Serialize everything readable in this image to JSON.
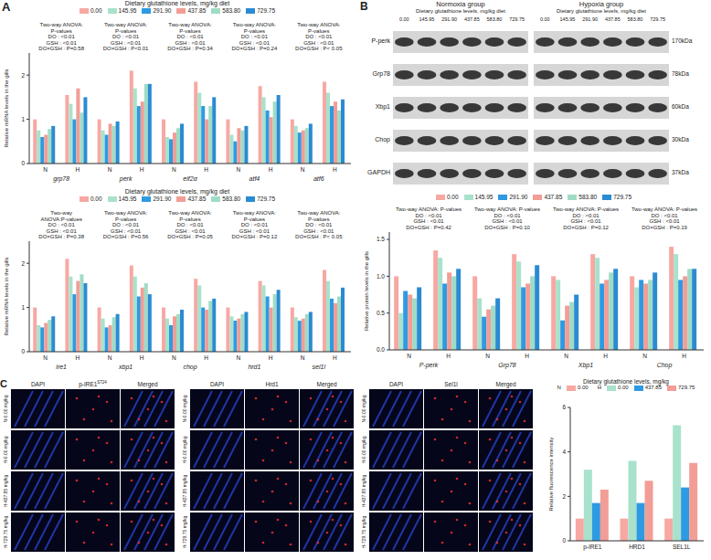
{
  "panel_labels": [
    "A",
    "B",
    "C"
  ],
  "chart_data": [
    {
      "type": "bar",
      "title": "Dietary glutathione levels, mg/kg diet",
      "y_label": "Relative mRNA levels in the gills",
      "legend": "top",
      "groups": [
        "grp78",
        "perk",
        "eif2α",
        "atf4",
        "atf6"
      ],
      "categories": [
        "N",
        "H",
        "N",
        "H",
        "N",
        "H",
        "N",
        "H",
        "N",
        "H"
      ],
      "ylim": [
        0,
        2.5
      ],
      "yticks": [
        0,
        1,
        2
      ],
      "annotations": [
        [
          "Two-way ANOVA: P-values",
          "DO : <0.01",
          "GSH : <0.01",
          "DO×GSH : P=0.58"
        ],
        [
          "Two-way ANOVA: P-values",
          "DO : <0.01",
          "GSH : <0.01",
          "DO×GSH : P<0.01"
        ],
        [
          "Two-way ANOVA: P-values",
          "DO : <0.01",
          "GSH : <0.01",
          "DO×GSH : P=0.34"
        ],
        [
          "Two-way ANOVA: P-values",
          "DO : <0.01",
          "GSH : <0.01",
          "DO×GSH : P=0.24"
        ],
        [
          "Two-way ANOVA: P-values",
          "DO : <0.01",
          "GSH : <0.01",
          "DO×GSH : P< 0.05"
        ]
      ],
      "series": [
        {
          "name": "0.00",
          "color": "#f7a8a3",
          "values": [
            1.0,
            1.55,
            1.0,
            2.1,
            1.0,
            1.85,
            1.0,
            1.75,
            1.0,
            1.85
          ]
        },
        {
          "name": "145.95",
          "color": "#a8e2cc",
          "values": [
            0.75,
            1.35,
            0.75,
            1.7,
            0.6,
            1.6,
            0.65,
            1.5,
            0.85,
            1.6
          ]
        },
        {
          "name": "291.90",
          "color": "#2e9ae2",
          "values": [
            0.6,
            1.0,
            0.65,
            1.3,
            0.55,
            1.3,
            0.5,
            1.2,
            0.7,
            1.3
          ]
        },
        {
          "name": "437.85",
          "color": "#f29d96",
          "values": [
            0.65,
            1.7,
            0.9,
            1.4,
            0.7,
            1.0,
            0.8,
            1.05,
            0.75,
            1.4
          ]
        },
        {
          "name": "583.80",
          "color": "#9fdcc5",
          "values": [
            0.78,
            1.15,
            0.85,
            1.8,
            0.8,
            1.3,
            0.75,
            1.4,
            0.8,
            1.2
          ]
        },
        {
          "name": "729.75",
          "color": "#2b8bd2",
          "values": [
            0.85,
            1.5,
            0.95,
            1.8,
            0.9,
            1.5,
            0.85,
            1.55,
            0.9,
            1.45
          ]
        }
      ]
    },
    {
      "type": "bar",
      "title": "Dietary glutathione levels, mg/kg diet",
      "y_label": "Relative mRNA levels in the gills",
      "legend": "top",
      "groups": [
        "ire1",
        "xbp1",
        "chop",
        "hrd1",
        "sel1l"
      ],
      "categories": [
        "N",
        "H",
        "N",
        "H",
        "N",
        "H",
        "N",
        "H",
        "N",
        "H"
      ],
      "ylim": [
        0,
        2.5
      ],
      "yticks": [
        0,
        1,
        2
      ],
      "annotations": [
        [
          "Two-way ANOVA:P-values",
          "DO : <0.01",
          "GSH : <0.01",
          "DO×GSH : P=0.38"
        ],
        [
          "Two-way ANOVA: P-values",
          "DO : <0.01",
          "GSH : <0.01",
          "DO×GSH : P=0.56"
        ],
        [
          "Two-way ANOVA: P-values",
          "DO : <0.01",
          "GSH : <0.01",
          "DO×GSH : P=0.05"
        ],
        [
          "Two-way ANOVA: P-values",
          "DO : <0.01",
          "GSH : <0.01",
          "DO×GSH : P=0.12"
        ],
        [
          "Two-way ANOVA: P-values",
          "DO : <0.01",
          "GSH : <0.01",
          "DO×GSH : P< 0.05"
        ]
      ],
      "series": [
        {
          "name": "0.00",
          "color": "#f7a8a3",
          "values": [
            1.0,
            2.1,
            1.0,
            1.95,
            1.0,
            1.65,
            1.0,
            1.6,
            1.0,
            1.85
          ]
        },
        {
          "name": "145.95",
          "color": "#a8e2cc",
          "values": [
            0.6,
            1.7,
            0.75,
            1.7,
            0.75,
            1.5,
            0.8,
            1.5,
            0.78,
            1.6
          ]
        },
        {
          "name": "291.90",
          "color": "#2e9ae2",
          "values": [
            0.55,
            1.3,
            0.55,
            1.25,
            0.6,
            1.0,
            0.7,
            1.25,
            0.7,
            1.2
          ]
        },
        {
          "name": "437.85",
          "color": "#f29d96",
          "values": [
            0.65,
            1.6,
            0.6,
            1.45,
            0.8,
            0.95,
            0.75,
            1.0,
            0.75,
            1.1
          ]
        },
        {
          "name": "583.80",
          "color": "#9fdcc5",
          "values": [
            0.72,
            1.75,
            0.78,
            1.55,
            0.85,
            1.15,
            0.85,
            1.3,
            0.85,
            1.25
          ]
        },
        {
          "name": "729.75",
          "color": "#2b8bd2",
          "values": [
            0.8,
            1.55,
            0.85,
            1.3,
            0.95,
            1.2,
            0.9,
            1.4,
            0.9,
            1.45
          ]
        }
      ]
    },
    {
      "type": "bar",
      "y_label": "Relative protein levels in the gills",
      "legend": "top",
      "groups": [
        "P-perk",
        "Grp78",
        "Xbp1",
        "Chop"
      ],
      "categories": [
        "N",
        "H",
        "N",
        "H",
        "N",
        "H",
        "N",
        "H"
      ],
      "ylim": [
        0,
        1.6
      ],
      "yticks": [
        {
          "value": 0,
          "label": "0.0"
        },
        {
          "value": 0.5,
          "label": "0.5"
        },
        {
          "value": 1,
          "label": "1.0"
        },
        {
          "value": 1.5,
          "label": "1.5"
        }
      ],
      "annotations": [
        [
          "Two-way ANOVA: P-values",
          "DO : <0.01",
          "GSH : <0.01",
          "DO×GSH : P=0.42"
        ],
        [
          "Two-way ANOVA: P-values",
          "DO : <0.01",
          "GSH : <0.01",
          "DO×GSH : P=0.10"
        ],
        [
          "Two-way ANOVA: P-values",
          "DO : <0.01",
          "GSH : <0.01",
          "DO×GSH : P=0.12"
        ],
        [
          "Two-way ANOVA: P-values",
          "DO : <0.01",
          "GSH : <0.01",
          "DO×GSH : P=0.19"
        ]
      ],
      "series": [
        {
          "name": "0.00",
          "color": "#f7a8a3",
          "values": [
            1.0,
            1.35,
            1.0,
            1.3,
            1.0,
            1.3,
            1.0,
            1.4
          ]
        },
        {
          "name": "145.95",
          "color": "#a8e2cc",
          "values": [
            0.5,
            1.25,
            0.7,
            1.2,
            0.95,
            1.25,
            0.85,
            1.3
          ]
        },
        {
          "name": "291.90",
          "color": "#2e9ae2",
          "values": [
            0.8,
            0.9,
            0.45,
            0.85,
            0.4,
            0.9,
            0.95,
            0.95
          ]
        },
        {
          "name": "437.85",
          "color": "#f29d96",
          "values": [
            0.75,
            1.05,
            0.55,
            0.9,
            0.6,
            0.95,
            0.9,
            1.0
          ]
        },
        {
          "name": "583.80",
          "color": "#9fdcc5",
          "values": [
            0.7,
            1.0,
            0.6,
            1.0,
            0.65,
            1.05,
            0.95,
            1.1
          ]
        },
        {
          "name": "729.75",
          "color": "#2b8bd2",
          "values": [
            0.85,
            1.1,
            0.7,
            1.15,
            0.75,
            1.1,
            1.05,
            1.1
          ]
        }
      ]
    },
    {
      "type": "bar",
      "title": "Dietary glutathione levels, mg/kg",
      "y_label": "Relative fluorescence intensity",
      "legend": "top",
      "categories": [
        "p-IRE1",
        "HRD1",
        "SEL1L"
      ],
      "ylim": [
        0,
        6
      ],
      "yticks": [
        0,
        2,
        4,
        6
      ],
      "series": [
        {
          "name": "0.00",
          "group": "N",
          "color": "#f7a8a3",
          "values": [
            1,
            1,
            1
          ]
        },
        {
          "name": "0.00",
          "group": "H",
          "color": "#a8e2cc",
          "values": [
            3.2,
            3.6,
            5.2
          ]
        },
        {
          "name": "437.85",
          "group": "H",
          "color": "#2e9ae2",
          "values": [
            1.7,
            1.7,
            2.4
          ]
        },
        {
          "name": "729.75",
          "group": "H",
          "color": "#f29d96",
          "values": [
            2.3,
            2.7,
            3.5
          ]
        }
      ]
    }
  ],
  "blot": {
    "groups": [
      "Normoxia group",
      "Hypoxia group"
    ],
    "title": "Dietary glutathione levels, mg/kg diet",
    "levels": [
      "0.00",
      "145.95",
      "291.90",
      "437.85",
      "583.80",
      "729.75"
    ],
    "rows": [
      {
        "name": "P-perk",
        "size": "170kDa"
      },
      {
        "name": "Grp78",
        "size": "78kDa"
      },
      {
        "name": "Xbp1",
        "size": "60kDa"
      },
      {
        "name": "Chop",
        "size": "30kDa"
      },
      {
        "name": "GAPDH",
        "size": "37kDa"
      }
    ]
  },
  "images": {
    "stain": "DAPI",
    "merged": "Merged",
    "groups": [
      {
        "marker": "p-IRE1",
        "sup": "S724"
      },
      {
        "marker": "Hrd1"
      },
      {
        "marker": "Sel1l"
      }
    ],
    "rows": [
      "N-0.00 mg/kg",
      "H-0.00 mg/kg",
      "H-437.85 mg/kg",
      "H-729.75 mg/kg"
    ]
  }
}
